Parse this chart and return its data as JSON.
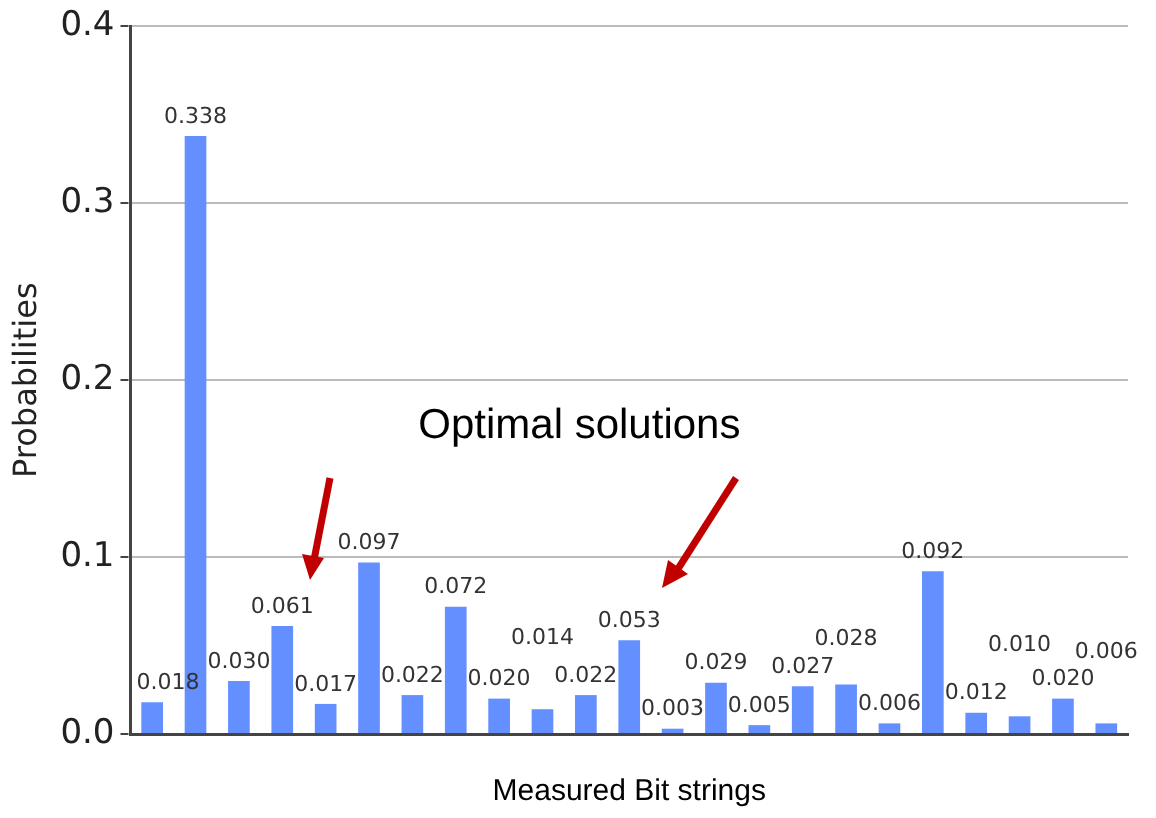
{
  "chart_data": {
    "type": "bar",
    "xlabel": "Measured Bit strings",
    "ylabel": "Probabilities",
    "categories": [
      null,
      null,
      null,
      null,
      null,
      null,
      null,
      null,
      null,
      null,
      null,
      null,
      null,
      null,
      null,
      null,
      null,
      null,
      null,
      null,
      null,
      null,
      null
    ],
    "values": [
      0.018,
      0.338,
      0.03,
      0.061,
      0.017,
      0.097,
      0.022,
      0.072,
      0.02,
      0.014,
      0.022,
      0.053,
      0.003,
      0.029,
      0.005,
      0.027,
      0.028,
      0.006,
      0.092,
      0.012,
      0.01,
      0.02,
      0.006
    ],
    "value_labels": [
      "0.018",
      "0.338",
      "0.030",
      "0.061",
      "0.017",
      "0.097",
      "0.022",
      "0.072",
      "0.020",
      "0.014",
      "0.022",
      "0.053",
      "0.003",
      "0.029",
      "0.005",
      "0.027",
      "0.028",
      "0.006",
      "0.092",
      "0.012",
      "0.010",
      "0.020",
      "0.006"
    ],
    "color": "#648fff",
    "ylim": [
      0,
      0.4
    ],
    "yticks": [
      {
        "value": 0,
        "label": "0.0"
      },
      0.1,
      0.2,
      0.3,
      0.4
    ],
    "grid": "y",
    "tick_labels": "y",
    "legend": false,
    "annotations": [
      "Optimal solutions"
    ]
  }
}
